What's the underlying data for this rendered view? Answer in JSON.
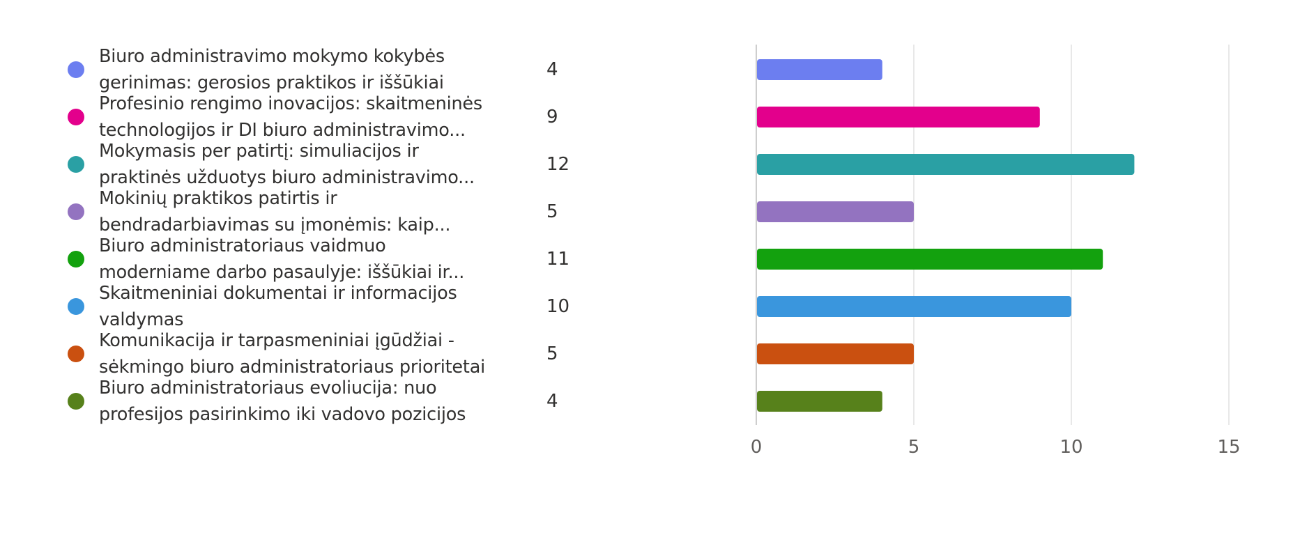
{
  "chart_data": {
    "type": "bar",
    "orientation": "horizontal",
    "categories": [
      [
        "Biuro administravimo mokymo kokybės",
        "gerinimas: gerosios praktikos ir iššūkiai"
      ],
      [
        "Profesinio rengimo inovacijos: skaitmeninės",
        "technologijos ir DI biuro administravimo..."
      ],
      [
        "Mokymasis per patirtį: simuliacijos ir",
        "praktinės užduotys biuro administravimo..."
      ],
      [
        "Mokinių praktikos patirtis ir",
        "bendradarbiavimas su įmonėmis: kaip..."
      ],
      [
        "Biuro administratoriaus vaidmuo",
        "moderniame darbo pasaulyje: iššūkiai ir..."
      ],
      [
        "Skaitmeniniai dokumentai ir informacijos",
        "valdymas"
      ],
      [
        "Komunikacija ir tarpasmeniniai įgūdžiai -",
        "sėkmingo biuro administratoriaus prioritetai"
      ],
      [
        "Biuro administratoriaus evoliucija: nuo",
        "profesijos pasirinkimo iki vadovo pozicijos"
      ]
    ],
    "values": [
      4,
      9,
      12,
      5,
      11,
      10,
      5,
      4
    ],
    "value_labels": [
      "4",
      "9",
      "12",
      "5",
      "11",
      "10",
      "5",
      "4"
    ],
    "colors": [
      "#6c7ef0",
      "#e3008c",
      "#2aa0a4",
      "#9373c0",
      "#13a10e",
      "#3a96dd",
      "#ca5010",
      "#57811b"
    ],
    "xlim": [
      0,
      15
    ],
    "xticks": [
      0,
      5,
      10,
      15
    ],
    "xtick_labels": [
      "0",
      "5",
      "10",
      "15"
    ],
    "grid": true,
    "legend": "left"
  }
}
